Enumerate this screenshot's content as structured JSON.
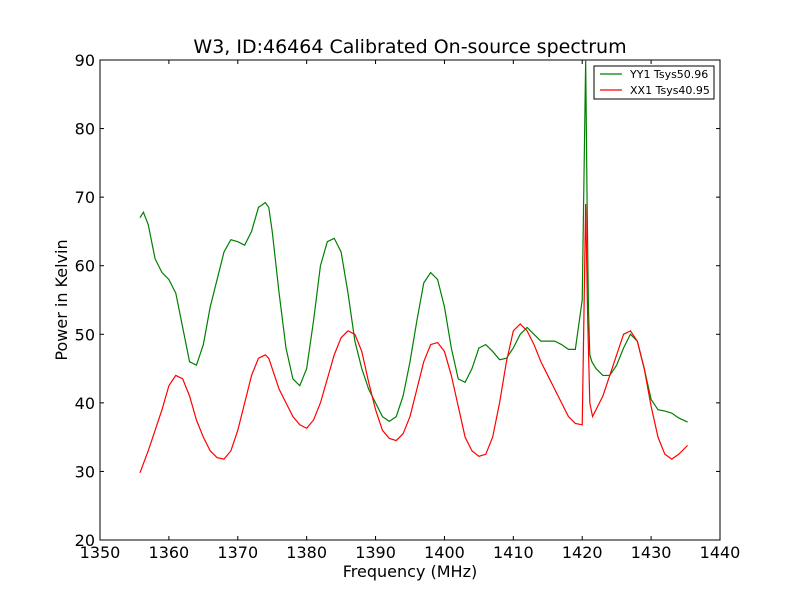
{
  "chart_data": {
    "type": "line",
    "title": "W3, ID:46464 Calibrated On-source spectrum",
    "xlabel": "Frequency (MHz)",
    "ylabel": "Power in Kelvin",
    "xlim": [
      1350,
      1440
    ],
    "ylim": [
      20,
      90
    ],
    "xticks": [
      1350,
      1360,
      1370,
      1380,
      1390,
      1400,
      1410,
      1420,
      1430,
      1440
    ],
    "yticks": [
      20,
      30,
      40,
      50,
      60,
      70,
      80,
      90
    ],
    "grid": false,
    "legend_position": "top-right",
    "series": [
      {
        "name": "YY1 Tsys50.96",
        "color": "#008000",
        "x": [
          1355.8,
          1356.3,
          1357,
          1358,
          1359,
          1360,
          1361,
          1362,
          1363,
          1364,
          1365,
          1366,
          1367,
          1368,
          1369,
          1370,
          1371,
          1372,
          1373,
          1374,
          1374.5,
          1375,
          1376,
          1377,
          1378,
          1379,
          1380,
          1381,
          1382,
          1383,
          1384,
          1385,
          1386,
          1387,
          1388,
          1389,
          1390,
          1391,
          1392,
          1393,
          1394,
          1395,
          1396,
          1397,
          1398,
          1399,
          1400,
          1401,
          1402,
          1403,
          1404,
          1405,
          1406,
          1407,
          1408,
          1409,
          1410,
          1411,
          1412,
          1413,
          1414,
          1415,
          1416,
          1417,
          1418,
          1419,
          1420,
          1420.5,
          1420.7,
          1420.9,
          1421.1,
          1421.4,
          1422,
          1423,
          1424,
          1425,
          1426,
          1427,
          1428,
          1429,
          1430,
          1431,
          1432,
          1433,
          1434,
          1435.3
        ],
        "y": [
          67,
          67.8,
          66,
          61,
          59,
          58,
          56,
          51,
          46,
          45.5,
          48.5,
          54,
          58,
          62,
          63.8,
          63.5,
          63,
          65,
          68.5,
          69.2,
          68.5,
          65,
          56,
          48,
          43.5,
          42.5,
          45,
          52,
          60,
          63.5,
          64,
          62,
          56,
          49,
          45,
          42,
          40,
          38,
          37.3,
          38,
          41,
          46,
          52,
          57.5,
          59,
          58,
          54,
          48,
          43.5,
          43,
          45,
          48,
          48.5,
          47.5,
          46.3,
          46.5,
          48,
          50,
          51,
          50,
          49,
          49,
          49,
          48.5,
          47.8,
          47.8,
          55,
          90,
          70,
          54,
          47,
          46,
          45,
          44,
          44,
          45.5,
          48,
          50,
          49,
          45,
          40.5,
          39,
          38.8,
          38.5,
          37.8,
          37.2
        ],
        "peak_label": ""
      },
      {
        "name": "XX1 Tsys40.95",
        "color": "#ff0000",
        "x": [
          1355.8,
          1357,
          1358,
          1359,
          1360,
          1361,
          1362,
          1363,
          1364,
          1365,
          1366,
          1367,
          1368,
          1369,
          1370,
          1371,
          1372,
          1373,
          1374,
          1374.5,
          1375,
          1376,
          1377,
          1378,
          1379,
          1380,
          1381,
          1382,
          1383,
          1384,
          1385,
          1386,
          1387,
          1388,
          1389,
          1390,
          1391,
          1392,
          1393,
          1394,
          1395,
          1396,
          1397,
          1398,
          1399,
          1400,
          1401,
          1402,
          1403,
          1404,
          1405,
          1406,
          1407,
          1408,
          1409,
          1410,
          1411,
          1412,
          1413,
          1414,
          1415,
          1416,
          1417,
          1418,
          1419,
          1420,
          1420.5,
          1420.8,
          1421.1,
          1421.5,
          1422,
          1423,
          1424,
          1425,
          1426,
          1427,
          1428,
          1429,
          1430,
          1431,
          1432,
          1433,
          1434,
          1435.3
        ],
        "y": [
          29.8,
          33,
          36,
          39,
          42.5,
          44,
          43.5,
          41,
          37.5,
          35,
          33,
          32,
          31.8,
          33,
          36,
          40,
          44,
          46.5,
          47,
          46.5,
          45,
          42,
          40,
          38,
          36.8,
          36.3,
          37.5,
          40,
          43.5,
          47,
          49.5,
          50.5,
          50,
          47.5,
          43,
          39,
          36,
          34.8,
          34.5,
          35.5,
          38,
          42,
          46,
          48.5,
          48.8,
          47.5,
          44,
          39.5,
          35,
          33,
          32.2,
          32.5,
          35,
          40,
          46,
          50.5,
          51.5,
          50.5,
          48.5,
          46,
          44,
          42,
          40,
          38,
          37,
          36.8,
          69,
          52,
          40,
          38,
          39,
          41,
          44,
          47,
          50,
          50.5,
          49,
          45,
          39.5,
          35,
          32.5,
          31.8,
          32.5,
          33.8
        ]
      }
    ]
  }
}
